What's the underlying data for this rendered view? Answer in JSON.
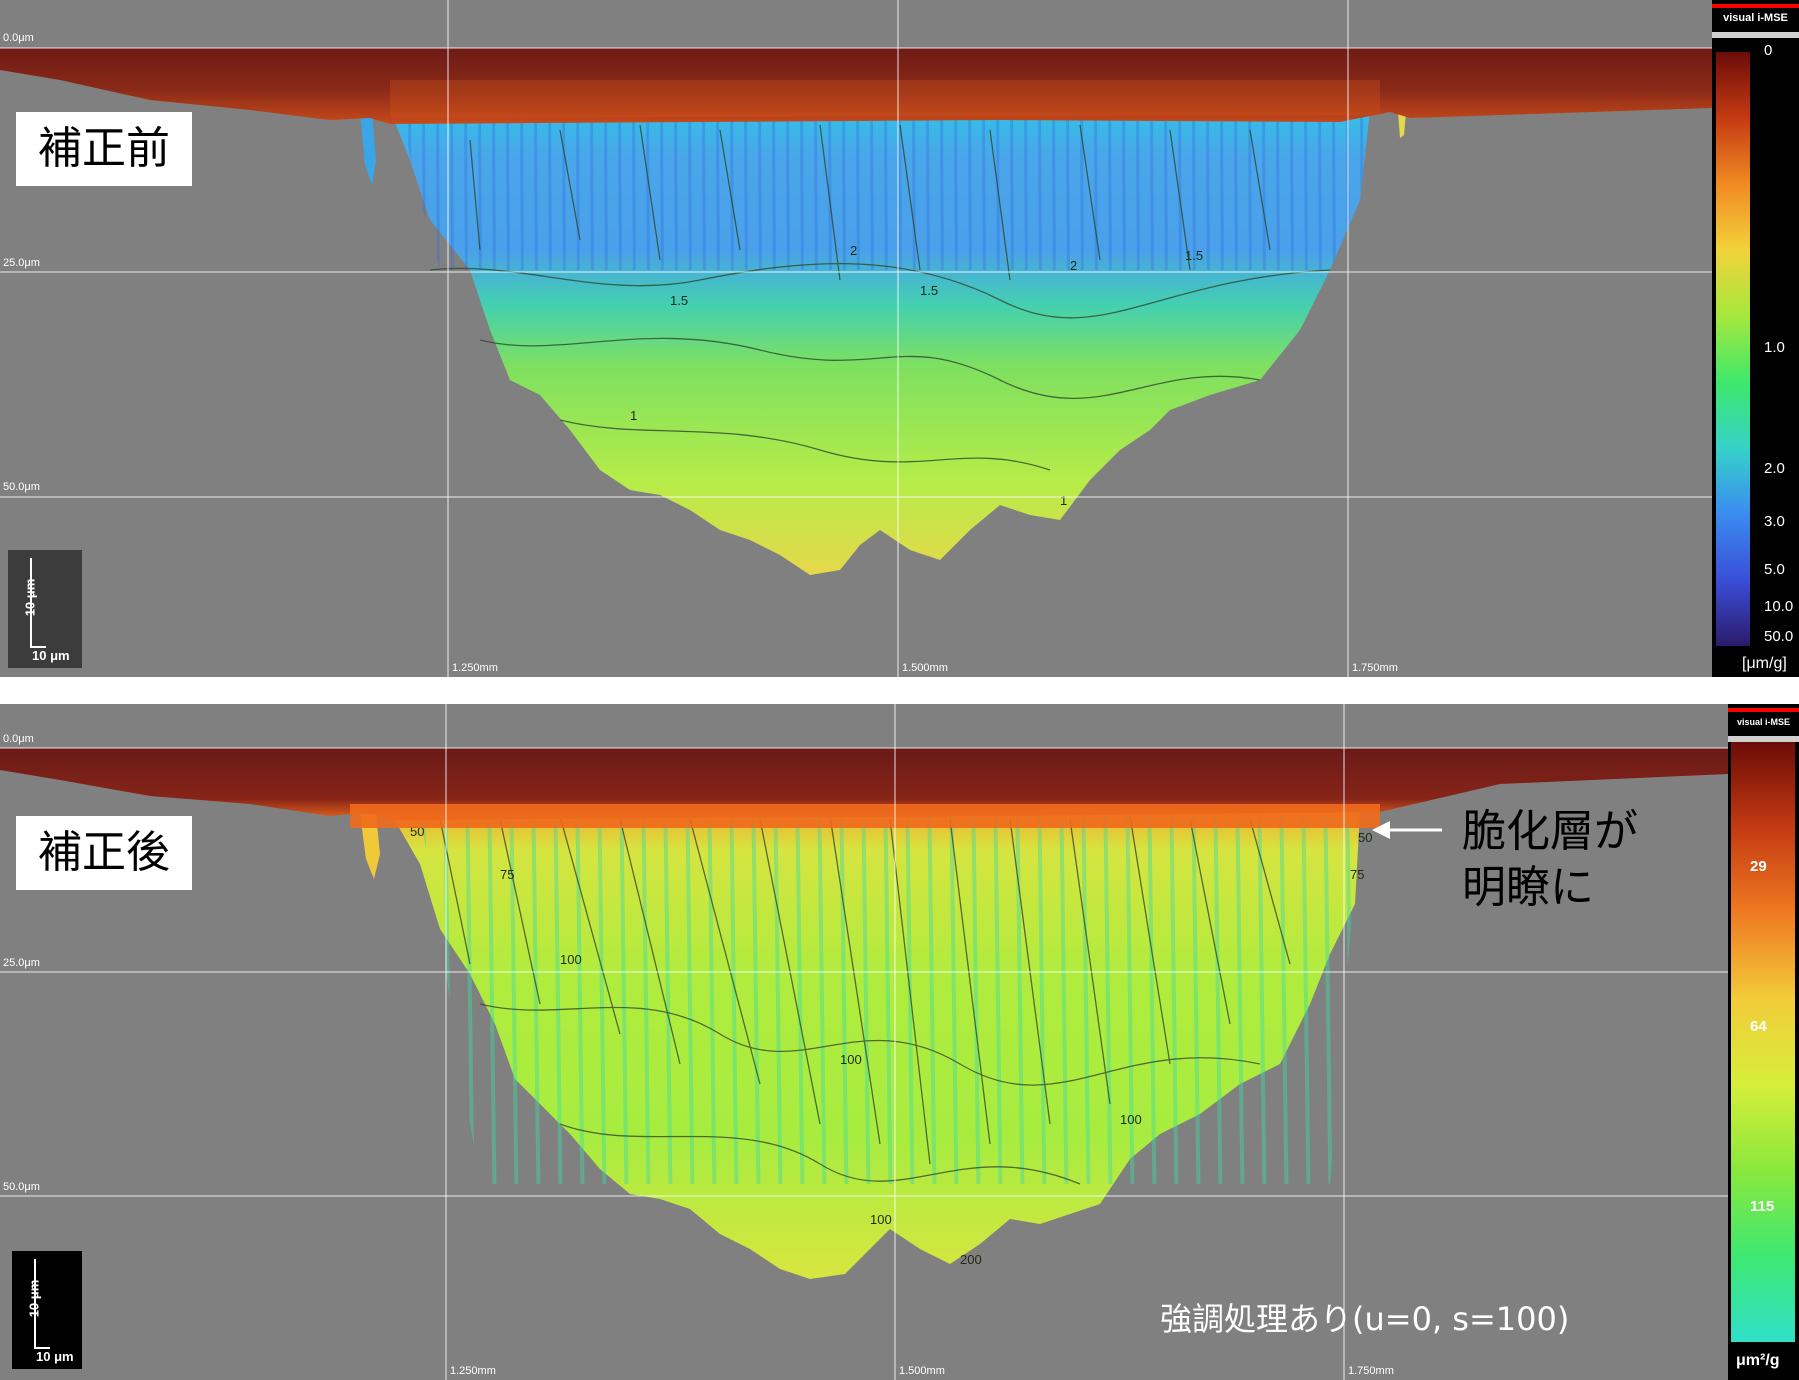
{
  "chart_data": [
    {
      "type": "heatmap",
      "panel_label": "補正前",
      "depth_labels": [
        "0.0μm",
        "25.0μm",
        "50.0μm"
      ],
      "x_tick_labels": [
        "1.250mm",
        "1.500mm",
        "1.750mm"
      ],
      "scale_bar": {
        "vertical": "10 μm",
        "horizontal": "10 μm"
      },
      "colorbar": {
        "brand": "visual i-MSE",
        "unit": "[μm/g]",
        "tick_labels": [
          "0",
          "1.0",
          "2.0",
          "3.0",
          "5.0",
          "10.0",
          "50.0"
        ],
        "colors": [
          "#6b0c08",
          "#c43a12",
          "#f08a22",
          "#f2d23a",
          "#a6e83c",
          "#3ee86a",
          "#36d2c8",
          "#3a8cf0",
          "#3a4fd8",
          "#2c1a6a"
        ]
      },
      "contour_labels": [
        "1",
        "1.5",
        "2"
      ],
      "grid": true
    },
    {
      "type": "heatmap",
      "panel_label": "補正後",
      "depth_labels": [
        "0.0μm",
        "25.0μm",
        "50.0μm"
      ],
      "x_tick_labels": [
        "1.250mm",
        "1.500mm",
        "1.750mm"
      ],
      "scale_bar": {
        "vertical": "10 μm",
        "horizontal": "10 μm"
      },
      "colorbar": {
        "brand": "visual i-MSE",
        "unit": "μm²/g",
        "tick_labels": [
          "29",
          "64",
          "115"
        ],
        "colors": [
          "#6b0c08",
          "#c43a12",
          "#f07a22",
          "#f2cc3a",
          "#d6ee3a",
          "#8ae83c",
          "#3ee872",
          "#30e0c8"
        ]
      },
      "contour_labels": [
        "50",
        "75",
        "100",
        "200"
      ],
      "annotation": "脆化層が\n明瞭に",
      "footnote": "強調処理あり(u=0, s=100)",
      "grid": true
    }
  ]
}
